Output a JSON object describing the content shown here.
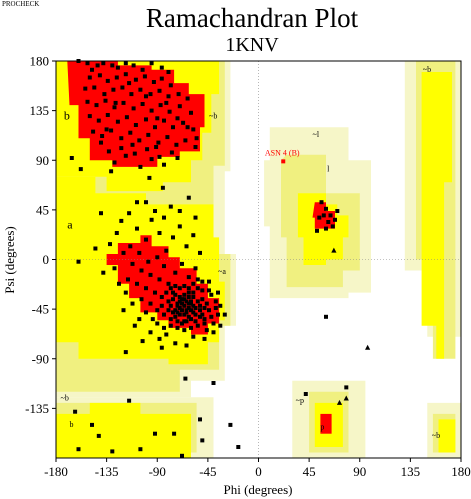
{
  "program_label": "PROCHECK",
  "colors": {
    "core": "#ff0000",
    "allowed": "#ffff00",
    "generous": "#f0f080",
    "outer": "#f6f6c8",
    "disallowed": "#ffffff",
    "point": "#000000",
    "outlier": "#ff0000",
    "frame": "#000000",
    "axis_dotted": "#888888"
  },
  "chart_data": {
    "type": "scatter",
    "title": "Ramachandran Plot",
    "subtitle": "1KNV",
    "xlabel": "Phi (degrees)",
    "ylabel": "Psi (degrees)",
    "xlim": [
      -180,
      180
    ],
    "ylim": [
      -180,
      180
    ],
    "xticks": [
      -180,
      -135,
      -90,
      -45,
      0,
      45,
      90,
      135,
      180
    ],
    "yticks": [
      180,
      135,
      90,
      45,
      0,
      -45,
      -90,
      -135
    ],
    "grid": false,
    "legend": "none",
    "region_labels": [
      {
        "text": "b",
        "x": -173,
        "y": 127
      },
      {
        "text": "~b",
        "x": -44,
        "y": 128
      },
      {
        "text": "~l",
        "x": 48,
        "y": 111
      },
      {
        "text": "l",
        "x": 61,
        "y": 80
      },
      {
        "text": "a",
        "x": -170,
        "y": 28
      },
      {
        "text": "~a",
        "x": -36,
        "y": -13
      },
      {
        "text": "~b",
        "x": 146,
        "y": 170
      },
      {
        "text": "~b",
        "x": -176,
        "y": -128
      },
      {
        "text": "b",
        "x": -168,
        "y": -152
      },
      {
        "text": "~p",
        "x": 33,
        "y": -130
      },
      {
        "text": "p",
        "x": 55,
        "y": -154
      },
      {
        "text": "~b",
        "x": 154,
        "y": -162
      }
    ],
    "outliers": [
      {
        "label": "ASN 4 (B)",
        "x": 22,
        "y": 89
      }
    ],
    "glycines": [
      {
        "x": 67,
        "y": 8
      },
      {
        "x": 97,
        "y": -80
      },
      {
        "x": 72,
        "y": -130
      },
      {
        "x": 78,
        "y": -126
      }
    ],
    "points": [
      [
        -148,
        172
      ],
      [
        -143,
        176
      ],
      [
        -138,
        178
      ],
      [
        -130,
        176
      ],
      [
        -125,
        174
      ],
      [
        -118,
        178
      ],
      [
        -111,
        176
      ],
      [
        -103,
        172
      ],
      [
        -95,
        178
      ],
      [
        -86,
        174
      ],
      [
        -80,
        170
      ],
      [
        -150,
        165
      ],
      [
        -141,
        167
      ],
      [
        -134,
        162
      ],
      [
        -126,
        165
      ],
      [
        -118,
        168
      ],
      [
        -109,
        163
      ],
      [
        -101,
        166
      ],
      [
        -93,
        161
      ],
      [
        -86,
        164
      ],
      [
        -78,
        158
      ],
      [
        -154,
        155
      ],
      [
        -146,
        156
      ],
      [
        -137,
        150
      ],
      [
        -129,
        154
      ],
      [
        -121,
        156
      ],
      [
        -113,
        150
      ],
      [
        -105,
        154
      ],
      [
        -96,
        150
      ],
      [
        -88,
        153
      ],
      [
        -80,
        148
      ],
      [
        -71,
        150
      ],
      [
        -63,
        146
      ],
      [
        -152,
        143
      ],
      [
        -144,
        140
      ],
      [
        -136,
        144
      ],
      [
        -128,
        138
      ],
      [
        -120,
        142
      ],
      [
        -111,
        137
      ],
      [
        -103,
        141
      ],
      [
        -95,
        135
      ],
      [
        -87,
        140
      ],
      [
        -79,
        134
      ],
      [
        -70,
        139
      ],
      [
        -60,
        133
      ],
      [
        -150,
        130
      ],
      [
        -142,
        126
      ],
      [
        -134,
        131
      ],
      [
        -125,
        125
      ],
      [
        -117,
        129
      ],
      [
        -109,
        122
      ],
      [
        -100,
        127
      ],
      [
        -92,
        120
      ],
      [
        -84,
        126
      ],
      [
        -76,
        120
      ],
      [
        -67,
        124
      ],
      [
        -58,
        118
      ],
      [
        -147,
        116
      ],
      [
        -139,
        112
      ],
      [
        -131,
        117
      ],
      [
        -122,
        110
      ],
      [
        -114,
        115
      ],
      [
        -106,
        108
      ],
      [
        -98,
        113
      ],
      [
        -89,
        106
      ],
      [
        -81,
        111
      ],
      [
        -73,
        104
      ],
      [
        -65,
        108
      ],
      [
        -56,
        102
      ],
      [
        -133,
        98
      ],
      [
        -122,
        101
      ],
      [
        -110,
        96
      ],
      [
        -99,
        100
      ],
      [
        -88,
        93
      ],
      [
        -77,
        97
      ],
      [
        -128,
        88
      ],
      [
        -105,
        84
      ],
      [
        -84,
        86
      ],
      [
        -160,
        180
      ],
      [
        -152,
        178
      ],
      [
        -118,
        94
      ],
      [
        -95,
        91
      ],
      [
        -72,
        92
      ],
      [
        -140,
        106
      ],
      [
        -112,
        104
      ],
      [
        -91,
        102
      ],
      [
        -166,
        92
      ],
      [
        -158,
        82
      ],
      [
        -131,
        80
      ],
      [
        -97,
        74
      ],
      [
        -85,
        65
      ],
      [
        -135,
        118
      ],
      [
        -127,
        142
      ],
      [
        -115,
        160
      ],
      [
        -100,
        148
      ],
      [
        -90,
        128
      ],
      [
        -82,
        142
      ],
      [
        -72,
        128
      ],
      [
        -63,
        120
      ],
      [
        -55,
        110
      ],
      [
        -163,
        -138
      ],
      [
        -148,
        -150
      ],
      [
        -75,
        -158
      ],
      [
        -68,
        -178
      ],
      [
        -50,
        -164
      ],
      [
        -130,
        -174
      ],
      [
        -142,
        -160
      ],
      [
        -105,
        -172
      ],
      [
        -92,
        -158
      ],
      [
        -160,
        -172
      ],
      [
        -122,
        35
      ],
      [
        -115,
        42
      ],
      [
        -108,
        28
      ],
      [
        -100,
        18
      ],
      [
        -95,
        36
      ],
      [
        -88,
        24
      ],
      [
        -82,
        8
      ],
      [
        -76,
        20
      ],
      [
        -70,
        30
      ],
      [
        -64,
        12
      ],
      [
        -58,
        22
      ],
      [
        -52,
        6
      ],
      [
        -114,
        12
      ],
      [
        -106,
        6
      ],
      [
        -98,
        -2
      ],
      [
        -90,
        2
      ],
      [
        -84,
        -6
      ],
      [
        -120,
        6
      ],
      [
        -112,
        -4
      ],
      [
        -104,
        -10
      ],
      [
        -96,
        -14
      ],
      [
        -88,
        -18
      ],
      [
        -80,
        -22
      ],
      [
        -74,
        -12
      ],
      [
        -68,
        -4
      ],
      [
        -62,
        -16
      ],
      [
        -56,
        -8
      ],
      [
        -50,
        -20
      ],
      [
        -44,
        -28
      ],
      [
        -116,
        -18
      ],
      [
        -108,
        -22
      ],
      [
        -100,
        -26
      ],
      [
        -92,
        -30
      ],
      [
        -86,
        -34
      ],
      [
        -80,
        -38
      ],
      [
        -76,
        -30
      ],
      [
        -72,
        -42
      ],
      [
        -68,
        -36
      ],
      [
        -64,
        -46
      ],
      [
        -60,
        -40
      ],
      [
        -56,
        -50
      ],
      [
        -52,
        -42
      ],
      [
        -48,
        -54
      ],
      [
        -44,
        -46
      ],
      [
        -40,
        -58
      ],
      [
        -36,
        -50
      ],
      [
        -104,
        -36
      ],
      [
        -96,
        -40
      ],
      [
        -90,
        -46
      ],
      [
        -84,
        -50
      ],
      [
        -78,
        -54
      ],
      [
        -72,
        -48
      ],
      [
        -66,
        -56
      ],
      [
        -62,
        -30
      ],
      [
        -58,
        -34
      ],
      [
        -54,
        -26
      ],
      [
        -50,
        -36
      ],
      [
        -46,
        -40
      ],
      [
        -42,
        -32
      ],
      [
        -38,
        -44
      ],
      [
        -70,
        -44
      ],
      [
        -68,
        -40
      ],
      [
        -66,
        -42
      ],
      [
        -64,
        -38
      ],
      [
        -62,
        -44
      ],
      [
        -70,
        -38
      ],
      [
        -68,
        -46
      ],
      [
        -66,
        -36
      ],
      [
        -64,
        -48
      ],
      [
        -62,
        -40
      ],
      [
        -60,
        -46
      ],
      [
        -58,
        -42
      ],
      [
        -60,
        -38
      ],
      [
        -58,
        -48
      ],
      [
        -56,
        -44
      ],
      [
        -72,
        -40
      ],
      [
        -74,
        -46
      ],
      [
        -70,
        -50
      ],
      [
        -66,
        -50
      ],
      [
        -62,
        -52
      ],
      [
        -76,
        -36
      ],
      [
        -74,
        -32
      ],
      [
        -70,
        -34
      ],
      [
        -66,
        -32
      ],
      [
        -62,
        -34
      ],
      [
        -58,
        -30
      ],
      [
        -54,
        -38
      ],
      [
        -52,
        -46
      ],
      [
        -50,
        -50
      ],
      [
        -48,
        -44
      ],
      [
        -80,
        -46
      ],
      [
        -78,
        -42
      ],
      [
        -76,
        -48
      ],
      [
        -74,
        -52
      ],
      [
        -72,
        -56
      ],
      [
        -68,
        -58
      ],
      [
        -64,
        -56
      ],
      [
        -60,
        -54
      ],
      [
        -56,
        -56
      ],
      [
        -52,
        -52
      ],
      [
        -86,
        -42
      ],
      [
        -82,
        -30
      ],
      [
        -78,
        -26
      ],
      [
        -74,
        -24
      ],
      [
        -70,
        -26
      ],
      [
        -66,
        -24
      ],
      [
        -62,
        -26
      ],
      [
        -58,
        -22
      ],
      [
        -54,
        -18
      ],
      [
        -50,
        -28
      ],
      [
        -100,
        -48
      ],
      [
        -94,
        -54
      ],
      [
        -90,
        -58
      ],
      [
        -84,
        -62
      ],
      [
        -78,
        -60
      ],
      [
        -72,
        -62
      ],
      [
        -66,
        -64
      ],
      [
        -60,
        -62
      ],
      [
        -54,
        -60
      ],
      [
        -48,
        -58
      ],
      [
        -42,
        -52
      ],
      [
        -38,
        -38
      ],
      [
        -36,
        -30
      ],
      [
        -34,
        -42
      ],
      [
        -46,
        -64
      ],
      [
        -40,
        -66
      ],
      [
        -82,
        -68
      ],
      [
        -58,
        -70
      ],
      [
        -48,
        -72
      ],
      [
        -106,
        -54
      ],
      [
        -112,
        -40
      ],
      [
        -118,
        -30
      ],
      [
        -124,
        -22
      ],
      [
        -110,
        -60
      ],
      [
        -96,
        -66
      ],
      [
        -88,
        -72
      ],
      [
        -120,
        -46
      ],
      [
        -34,
        -60
      ],
      [
        -30,
        -50
      ],
      [
        -44,
        -20
      ],
      [
        -128,
        -8
      ],
      [
        -132,
        14
      ],
      [
        -138,
        -12
      ],
      [
        -126,
        24
      ],
      [
        -140,
        42
      ],
      [
        -100,
        52
      ],
      [
        -92,
        44
      ],
      [
        -84,
        38
      ],
      [
        -78,
        48
      ],
      [
        -70,
        44
      ],
      [
        -62,
        56
      ],
      [
        -56,
        38
      ],
      [
        -108,
        52
      ],
      [
        -160,
        -2
      ],
      [
        -118,
        -84
      ],
      [
        -145,
        10
      ],
      [
        -103,
        -74
      ],
      [
        -86,
        -80
      ],
      [
        -74,
        -76
      ],
      [
        -64,
        -78
      ],
      [
        56,
        52
      ],
      [
        60,
        46
      ],
      [
        64,
        40
      ],
      [
        68,
        36
      ],
      [
        58,
        40
      ],
      [
        62,
        34
      ],
      [
        66,
        30
      ],
      [
        60,
        28
      ],
      [
        70,
        44
      ],
      [
        54,
        38
      ],
      [
        52,
        26
      ],
      [
        60,
        -52
      ],
      [
        42,
        -122
      ],
      [
        78,
        -116
      ],
      [
        -65,
        -108
      ],
      [
        -25,
        -150
      ],
      [
        -18,
        -170
      ],
      [
        -40,
        -112
      ],
      [
        -52,
        -145
      ],
      [
        -115,
        -128
      ]
    ]
  }
}
